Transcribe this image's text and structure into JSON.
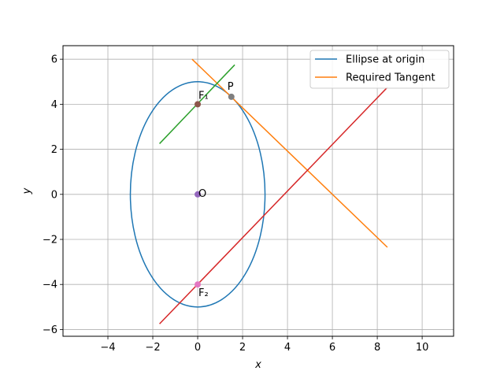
{
  "chart_data": {
    "type": "line",
    "title": "",
    "xlabel": "x",
    "ylabel": "y",
    "xlim": [
      -6.0,
      11.4
    ],
    "ylim": [
      -6.3,
      6.6
    ],
    "xticks": [
      -4,
      -2,
      0,
      2,
      4,
      6,
      8,
      10
    ],
    "yticks": [
      -6,
      -4,
      -2,
      0,
      2,
      4,
      6
    ],
    "grid": true,
    "legend_position": "top-right",
    "series": [
      {
        "name": "Ellipse at origin",
        "kind": "ellipse",
        "center": [
          0,
          0
        ],
        "a": 3,
        "b": 5,
        "color": "#1f77b4"
      },
      {
        "name": "Required Tangent",
        "kind": "segment",
        "x": [
          -0.25,
          8.45
        ],
        "y": [
          6.0,
          -2.35
        ],
        "color": "#ff7f0e"
      },
      {
        "name": "",
        "kind": "segment",
        "x": [
          -1.7,
          1.65
        ],
        "y": [
          2.25,
          5.75
        ],
        "color": "#2ca02c"
      },
      {
        "name": "",
        "kind": "segment",
        "x": [
          -1.7,
          8.45
        ],
        "y": [
          -5.75,
          4.75
        ],
        "color": "#d62728"
      }
    ],
    "points": [
      {
        "label": "F₁",
        "x": 0,
        "y": 4,
        "color": "#8c564b"
      },
      {
        "label": "P",
        "x": 1.5,
        "y": 4.33,
        "color": "#7f7f7f"
      },
      {
        "label": "O",
        "x": 0,
        "y": 0,
        "color": "#9467bd"
      },
      {
        "label": "F₂",
        "x": 0,
        "y": -4,
        "color": "#e377c2"
      }
    ]
  }
}
